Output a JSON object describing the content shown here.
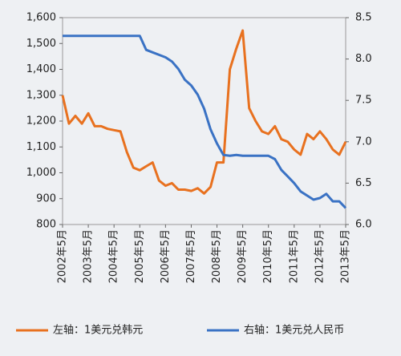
{
  "chart_data": {
    "type": "line",
    "categories": [
      "2002年5月",
      null,
      null,
      null,
      "2003年5月",
      null,
      null,
      null,
      "2004年5月",
      null,
      null,
      null,
      "2005年5月",
      null,
      null,
      null,
      "2006年5月",
      null,
      null,
      null,
      "2007年5月",
      null,
      null,
      null,
      "2008年5月",
      null,
      null,
      null,
      "2009年5月",
      null,
      null,
      null,
      "2010年5月",
      null,
      null,
      null,
      "2011年5月",
      null,
      null,
      null,
      "2012年5月",
      null,
      null,
      null,
      "2013年5月"
    ],
    "series": [
      {
        "name": "左轴：1美元兑韩元",
        "color": "#e8711f",
        "axis": "y",
        "values": [
          1300,
          1190,
          1220,
          1190,
          1230,
          1180,
          1180,
          1170,
          1165,
          1160,
          1080,
          1020,
          1010,
          1025,
          1040,
          970,
          950,
          960,
          935,
          935,
          930,
          940,
          920,
          945,
          1040,
          1040,
          1400,
          1480,
          1550,
          1250,
          1200,
          1160,
          1150,
          1180,
          1130,
          1120,
          1090,
          1070,
          1150,
          1130,
          1160,
          1130,
          1090,
          1070,
          1120
        ]
      },
      {
        "name": "右轴：1美元兑人民币",
        "color": "#3a72c4",
        "axis": "y2",
        "values": [
          8.28,
          8.28,
          8.28,
          8.28,
          8.28,
          8.28,
          8.28,
          8.28,
          8.28,
          8.28,
          8.28,
          8.28,
          8.28,
          8.11,
          8.08,
          8.05,
          8.02,
          7.97,
          7.88,
          7.75,
          7.68,
          7.57,
          7.4,
          7.15,
          6.98,
          6.84,
          6.83,
          6.84,
          6.83,
          6.83,
          6.83,
          6.83,
          6.83,
          6.79,
          6.66,
          6.58,
          6.5,
          6.4,
          6.35,
          6.3,
          6.32,
          6.37,
          6.28,
          6.28,
          6.2
        ]
      }
    ],
    "ylim": [
      800,
      1600
    ],
    "yticks": [
      800,
      900,
      {
        "value": 1000,
        "label": "1,000"
      },
      {
        "value": 1100,
        "label": "1,100"
      },
      {
        "value": 1200,
        "label": "1,200"
      },
      {
        "value": 1300,
        "label": "1,300"
      },
      {
        "value": 1400,
        "label": "1,400"
      },
      {
        "value": 1500,
        "label": "1,500"
      },
      {
        "value": 1600,
        "label": "1,600"
      }
    ],
    "y2lim": [
      6.0,
      8.5
    ],
    "y2ticks": [
      {
        "value": 6.0,
        "label": "6.0"
      },
      6.5,
      {
        "value": 7.0,
        "label": "7.0"
      },
      7.5,
      {
        "value": 8.0,
        "label": "8.0"
      },
      8.5
    ],
    "legend": "bottom"
  }
}
